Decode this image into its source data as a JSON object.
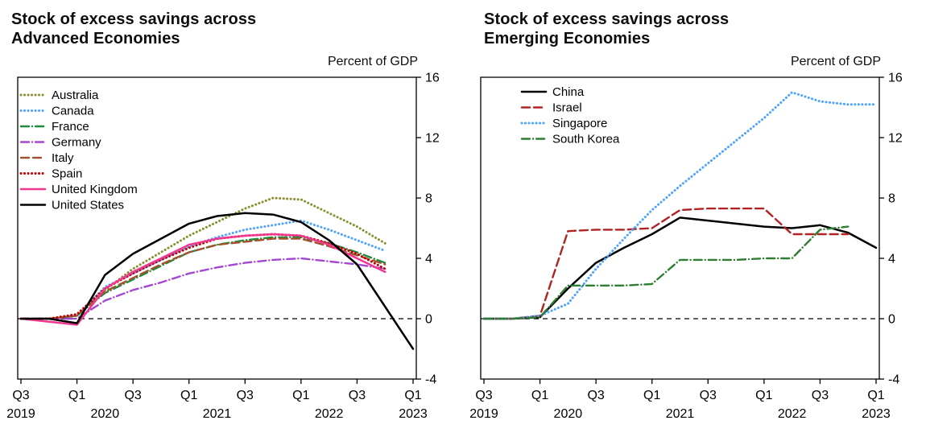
{
  "figure": {
    "background": "#ffffff"
  },
  "chart_data": [
    {
      "type": "line",
      "title": "Stock of excess savings across\nAdvanced Economies",
      "unit_label": "Percent of GDP",
      "x_quarters": [
        "2019Q3",
        "2019Q4",
        "2020Q1",
        "2020Q2",
        "2020Q3",
        "2020Q4",
        "2021Q1",
        "2021Q2",
        "2021Q3",
        "2021Q4",
        "2022Q1",
        "2022Q2",
        "2022Q3",
        "2022Q4",
        "2023Q1"
      ],
      "x_ticks": [
        {
          "i": 0,
          "label": "Q3"
        },
        {
          "i": 2,
          "label": "Q1"
        },
        {
          "i": 4,
          "label": "Q3"
        },
        {
          "i": 6,
          "label": "Q1"
        },
        {
          "i": 8,
          "label": "Q3"
        },
        {
          "i": 10,
          "label": "Q1"
        },
        {
          "i": 12,
          "label": "Q3"
        },
        {
          "i": 14,
          "label": "Q1"
        }
      ],
      "x_years": [
        {
          "i": 0,
          "label": "2019"
        },
        {
          "i": 3,
          "label": "2020"
        },
        {
          "i": 7,
          "label": "2021"
        },
        {
          "i": 11,
          "label": "2022"
        },
        {
          "i": 14,
          "label": "2023"
        }
      ],
      "ylim": [
        -4,
        16
      ],
      "yticks": [
        -4,
        0,
        4,
        8,
        12,
        16
      ],
      "zero_line": true,
      "legend_position": "top-left",
      "legend_inset": [
        4,
        22
      ],
      "series": [
        {
          "name": "Australia",
          "color": "#8a8f2f",
          "style": "dotted",
          "values": [
            0,
            0,
            0.2,
            1.9,
            3.3,
            4.4,
            5.5,
            6.4,
            7.3,
            8.0,
            7.9,
            7.0,
            6.1,
            5.0,
            null
          ]
        },
        {
          "name": "Canada",
          "color": "#4da3ff",
          "style": "dotted",
          "values": [
            0,
            0,
            0.2,
            2.1,
            3.0,
            3.9,
            4.8,
            5.4,
            5.9,
            6.2,
            6.5,
            5.9,
            5.2,
            4.5,
            null
          ]
        },
        {
          "name": "France",
          "color": "#1e8c3c",
          "style": "dashdot",
          "values": [
            0,
            0,
            0.2,
            1.7,
            2.6,
            3.5,
            4.4,
            4.9,
            5.2,
            5.4,
            5.4,
            5.0,
            4.4,
            3.7,
            null
          ]
        },
        {
          "name": "Germany",
          "color": "#a347d1",
          "style": "dashdot",
          "values": [
            0,
            0,
            0,
            1.2,
            1.9,
            2.4,
            3.0,
            3.4,
            3.7,
            3.9,
            4.0,
            3.8,
            3.6,
            3.3,
            null
          ]
        },
        {
          "name": "Italy",
          "color": "#a0522d",
          "style": "dashed",
          "values": [
            0,
            0,
            0.2,
            1.8,
            2.7,
            3.6,
            4.4,
            4.9,
            5.1,
            5.3,
            5.3,
            4.8,
            4.2,
            3.6,
            null
          ]
        },
        {
          "name": "Spain",
          "color": "#c00000",
          "style": "dotted",
          "values": [
            0,
            0,
            0.3,
            2.0,
            3.0,
            3.9,
            4.7,
            5.3,
            5.5,
            5.6,
            5.5,
            5.0,
            4.3,
            3.3,
            null
          ]
        },
        {
          "name": "United Kingdom",
          "color": "#f2378f",
          "style": "solid",
          "values": [
            0,
            -0.2,
            -0.4,
            2.0,
            3.1,
            4.0,
            4.9,
            5.3,
            5.5,
            5.6,
            5.5,
            4.9,
            4.0,
            3.1,
            null
          ]
        },
        {
          "name": "United States",
          "color": "#000000",
          "style": "solid",
          "values": [
            0,
            0,
            -0.3,
            2.9,
            4.3,
            5.3,
            6.3,
            6.8,
            7.0,
            6.9,
            6.4,
            5.2,
            3.6,
            0.8,
            -2.0
          ]
        }
      ]
    },
    {
      "type": "line",
      "title": "Stock of excess savings across\nEmerging Economies",
      "unit_label": "Percent of GDP",
      "x_quarters": [
        "2019Q3",
        "2019Q4",
        "2020Q1",
        "2020Q2",
        "2020Q3",
        "2020Q4",
        "2021Q1",
        "2021Q2",
        "2021Q3",
        "2021Q4",
        "2022Q1",
        "2022Q2",
        "2022Q3",
        "2022Q4",
        "2023Q1"
      ],
      "x_ticks": [
        {
          "i": 0,
          "label": "Q3"
        },
        {
          "i": 2,
          "label": "Q1"
        },
        {
          "i": 4,
          "label": "Q3"
        },
        {
          "i": 6,
          "label": "Q1"
        },
        {
          "i": 8,
          "label": "Q3"
        },
        {
          "i": 10,
          "label": "Q1"
        },
        {
          "i": 12,
          "label": "Q3"
        },
        {
          "i": 14,
          "label": "Q1"
        }
      ],
      "x_years": [
        {
          "i": 0,
          "label": "2019"
        },
        {
          "i": 3,
          "label": "2020"
        },
        {
          "i": 7,
          "label": "2021"
        },
        {
          "i": 11,
          "label": "2022"
        },
        {
          "i": 14,
          "label": "2023"
        }
      ],
      "ylim": [
        -4,
        16
      ],
      "yticks": [
        -4,
        0,
        4,
        8,
        12,
        16
      ],
      "zero_line": true,
      "legend_position": "top-left",
      "legend_inset": [
        51,
        18
      ],
      "series": [
        {
          "name": "China",
          "color": "#000000",
          "style": "solid",
          "values": [
            0,
            0,
            0.1,
            2.0,
            3.7,
            4.7,
            5.6,
            6.7,
            6.5,
            6.3,
            6.1,
            6.0,
            6.2,
            5.7,
            4.7
          ]
        },
        {
          "name": "Israel",
          "color": "#b22222",
          "style": "dashed",
          "values": [
            0,
            0,
            0.2,
            5.8,
            5.9,
            5.9,
            6.0,
            7.2,
            7.3,
            7.3,
            7.3,
            5.6,
            5.6,
            5.6,
            null
          ]
        },
        {
          "name": "Singapore",
          "color": "#4da3ff",
          "style": "dotted",
          "values": [
            0,
            0,
            0.2,
            1.0,
            3.3,
            5.3,
            7.2,
            8.8,
            10.3,
            11.8,
            13.3,
            15.0,
            14.4,
            14.2,
            14.2
          ]
        },
        {
          "name": "South Korea",
          "color": "#2e7d32",
          "style": "dashdot",
          "values": [
            0,
            0,
            0.1,
            2.2,
            2.2,
            2.2,
            2.3,
            3.9,
            3.9,
            3.9,
            4.0,
            4.0,
            5.9,
            6.1,
            null
          ]
        }
      ]
    }
  ]
}
